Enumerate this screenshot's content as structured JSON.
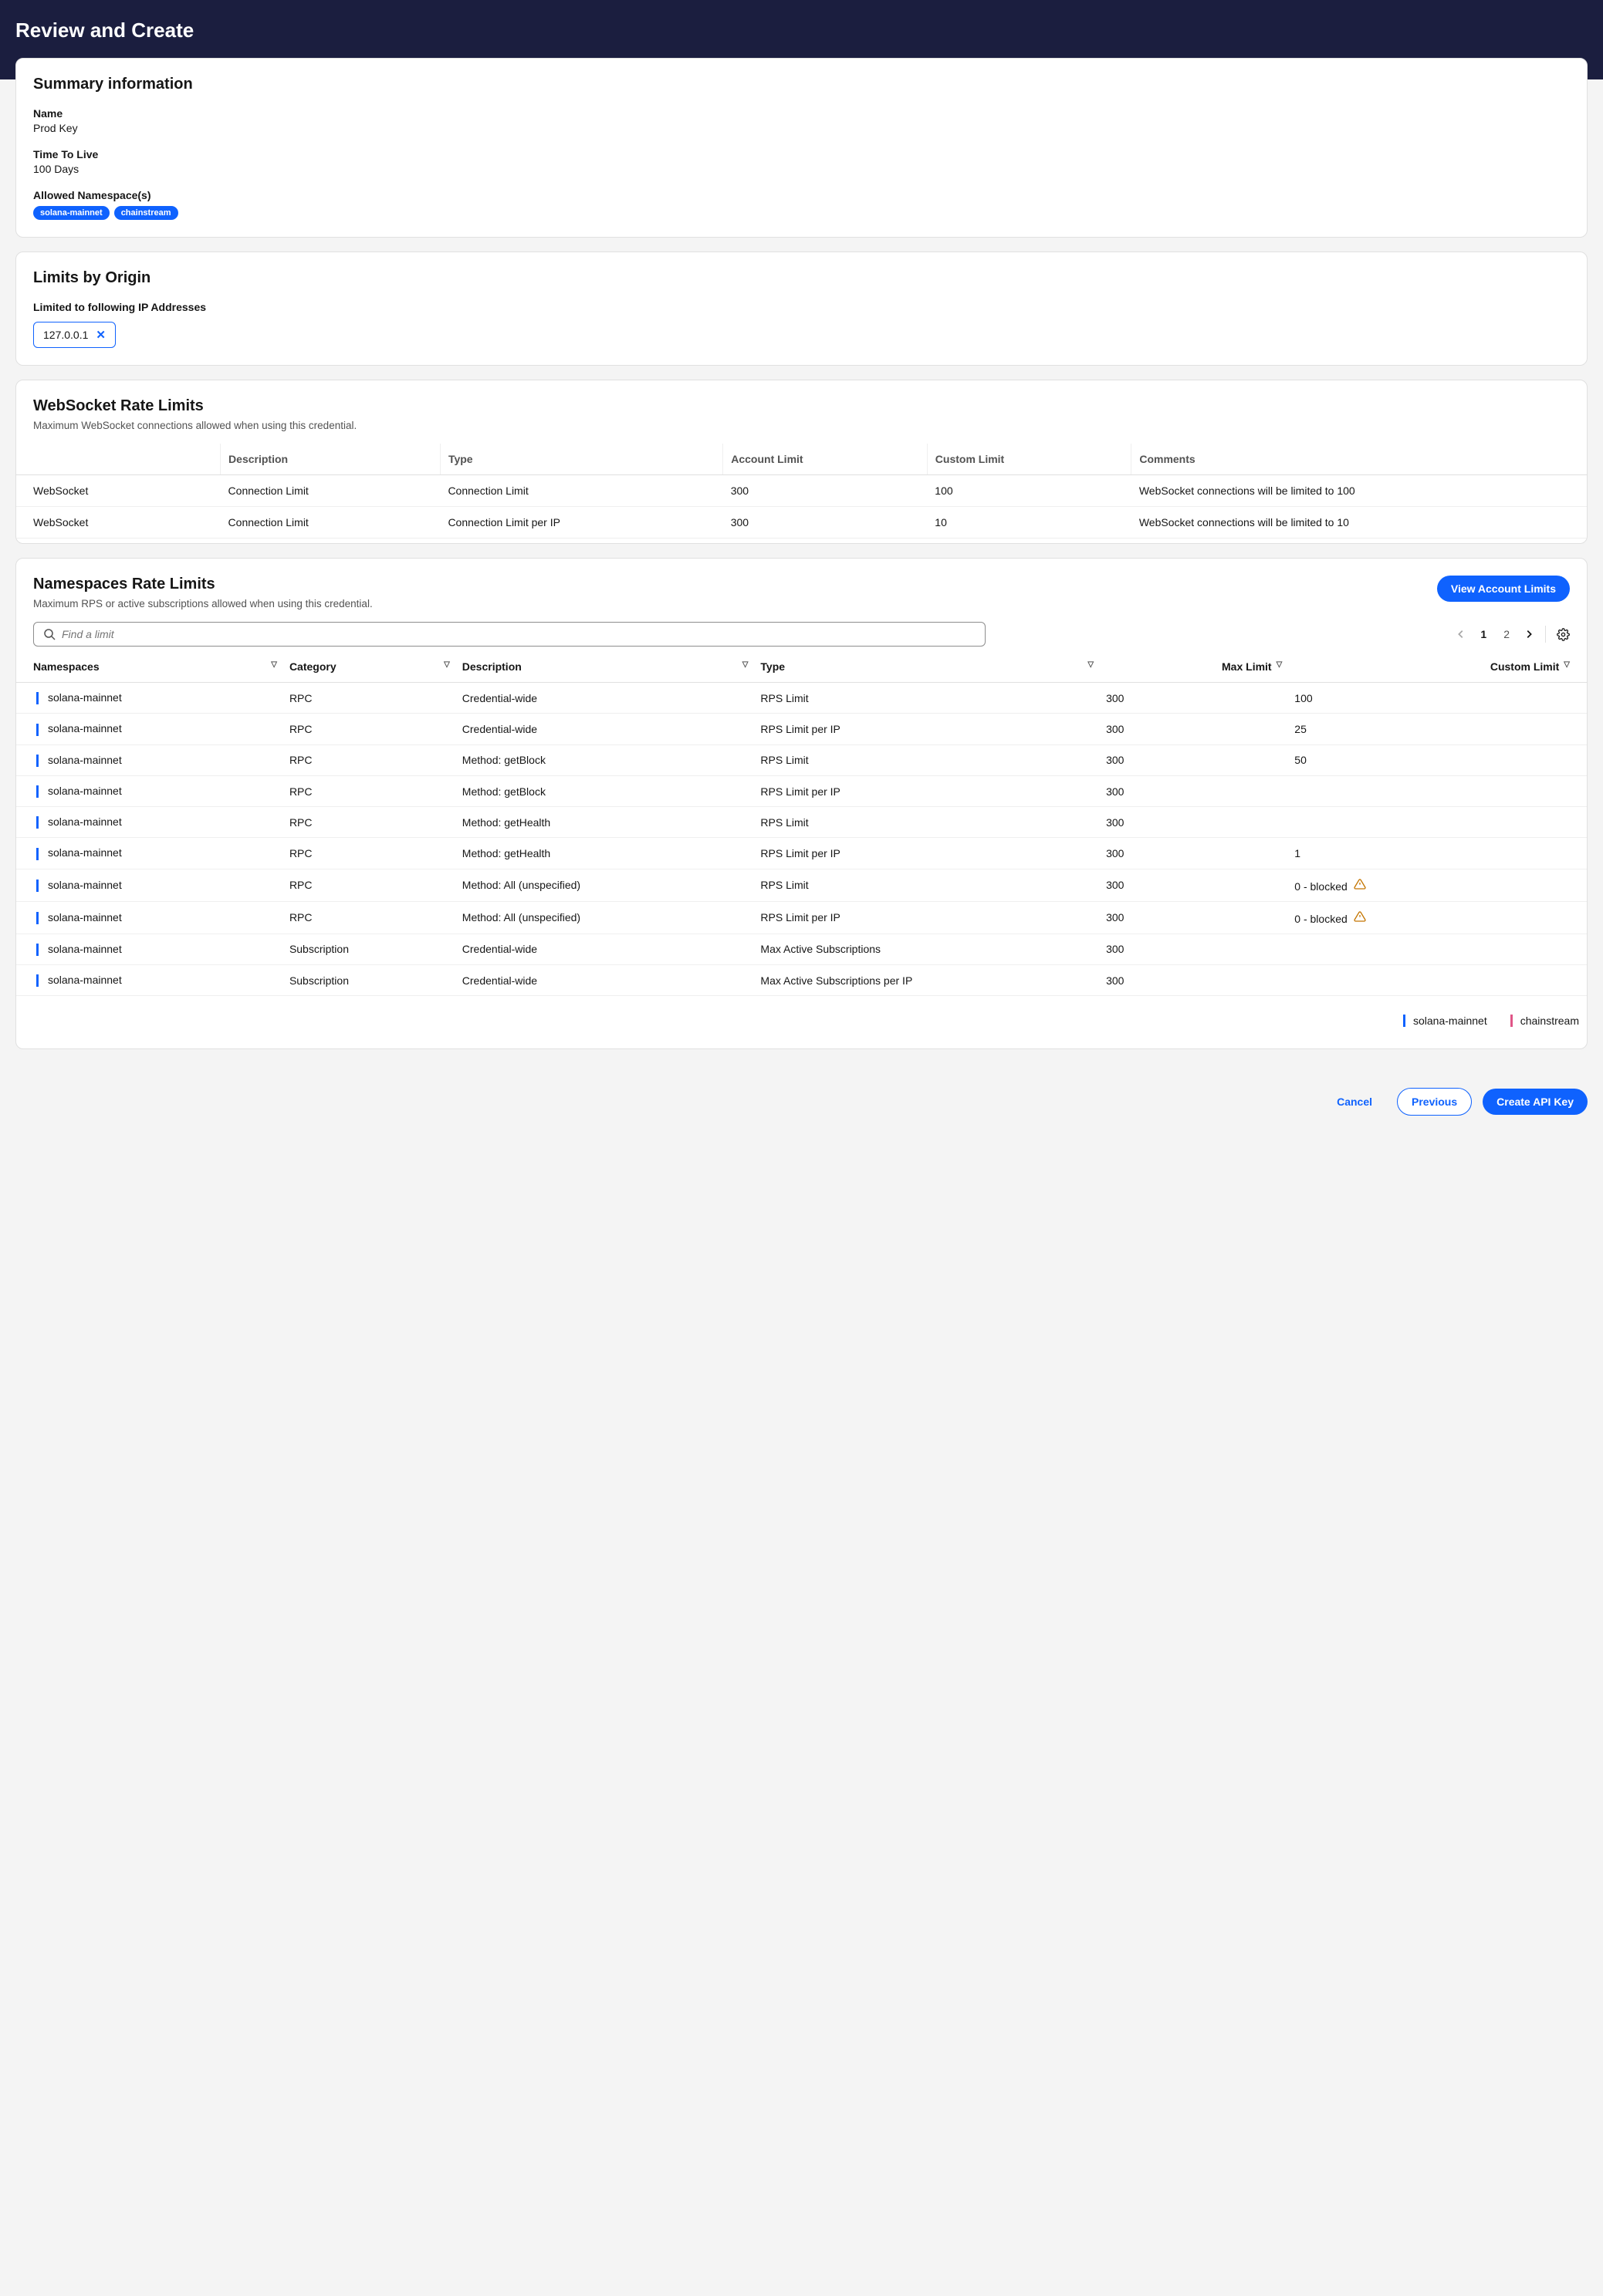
{
  "colors": {
    "header_bg": "#1b1e3f",
    "primary": "#0f62fe",
    "text": "#161616",
    "muted": "#525252",
    "border": "#e0e0e0",
    "row_border": "#efefef",
    "warn": "#c47500",
    "chainstream": "#e05587",
    "card_bg": "#ffffff",
    "page_bg": "#f4f4f4"
  },
  "page": {
    "title": "Review and Create"
  },
  "summary": {
    "heading": "Summary information",
    "name_label": "Name",
    "name_value": "Prod Key",
    "ttl_label": "Time To Live",
    "ttl_value": "100 Days",
    "ns_label": "Allowed Namespace(s)",
    "ns_badges": [
      "solana-mainnet",
      "chainstream"
    ]
  },
  "origin": {
    "heading": "Limits by Origin",
    "sub_label": "Limited to following IP Addresses",
    "ips": [
      "127.0.0.1"
    ]
  },
  "ws": {
    "heading": "WebSocket Rate Limits",
    "sub": "Maximum WebSocket connections allowed when using this credential.",
    "cols": [
      "",
      "Description",
      "Type",
      "Account Limit",
      "Custom Limit",
      "Comments"
    ],
    "rows": [
      {
        "c0": "WebSocket",
        "desc": "Connection Limit",
        "type": "Connection Limit",
        "acc": "300",
        "cust": "100",
        "comm": "WebSocket connections will be limited to 100"
      },
      {
        "c0": "WebSocket",
        "desc": "Connection Limit",
        "type": "Connection Limit per IP",
        "acc": "300",
        "cust": "10",
        "comm": "WebSocket connections will be limited to 10"
      }
    ]
  },
  "ns": {
    "heading": "Namespaces Rate Limits",
    "sub": "Maximum RPS or active subscriptions allowed when using this credential.",
    "view_btn": "View Account Limits",
    "search_placeholder": "Find a limit",
    "pager": {
      "current": "1",
      "other": "2"
    },
    "cols": {
      "namespaces": "Namespaces",
      "category": "Category",
      "description": "Description",
      "type": "Type",
      "max": "Max Limit",
      "custom": "Custom Limit"
    },
    "rows": [
      {
        "ns": "solana-mainnet",
        "cat": "RPC",
        "desc": "Credential-wide",
        "type": "RPS Limit",
        "max": "300",
        "cust": "100",
        "warn": false
      },
      {
        "ns": "solana-mainnet",
        "cat": "RPC",
        "desc": "Credential-wide",
        "type": "RPS Limit per IP",
        "max": "300",
        "cust": "25",
        "warn": false
      },
      {
        "ns": "solana-mainnet",
        "cat": "RPC",
        "desc": "Method: getBlock",
        "type": "RPS Limit",
        "max": "300",
        "cust": "50",
        "warn": false
      },
      {
        "ns": "solana-mainnet",
        "cat": "RPC",
        "desc": "Method: getBlock",
        "type": "RPS Limit per IP",
        "max": "300",
        "cust": "",
        "warn": false
      },
      {
        "ns": "solana-mainnet",
        "cat": "RPC",
        "desc": "Method: getHealth",
        "type": "RPS Limit",
        "max": "300",
        "cust": "",
        "warn": false
      },
      {
        "ns": "solana-mainnet",
        "cat": "RPC",
        "desc": "Method: getHealth",
        "type": "RPS Limit per IP",
        "max": "300",
        "cust": "1",
        "warn": false
      },
      {
        "ns": "solana-mainnet",
        "cat": "RPC",
        "desc": "Method: All (unspecified)",
        "type": "RPS Limit",
        "max": "300",
        "cust": "0 - blocked",
        "warn": true
      },
      {
        "ns": "solana-mainnet",
        "cat": "RPC",
        "desc": "Method: All (unspecified)",
        "type": "RPS Limit per IP",
        "max": "300",
        "cust": "0 - blocked",
        "warn": true
      },
      {
        "ns": "solana-mainnet",
        "cat": "Subscription",
        "desc": "Credential-wide",
        "type": "Max Active Subscriptions",
        "max": "300",
        "cust": "",
        "warn": false
      },
      {
        "ns": "solana-mainnet",
        "cat": "Subscription",
        "desc": "Credential-wide",
        "type": "Max Active Subscriptions per IP",
        "max": "300",
        "cust": "",
        "warn": false
      }
    ],
    "legend": [
      {
        "label": "solana-mainnet",
        "color": "#0f62fe"
      },
      {
        "label": "chainstream",
        "color": "#e05587"
      }
    ]
  },
  "footer": {
    "cancel": "Cancel",
    "previous": "Previous",
    "create": "Create API Key"
  }
}
